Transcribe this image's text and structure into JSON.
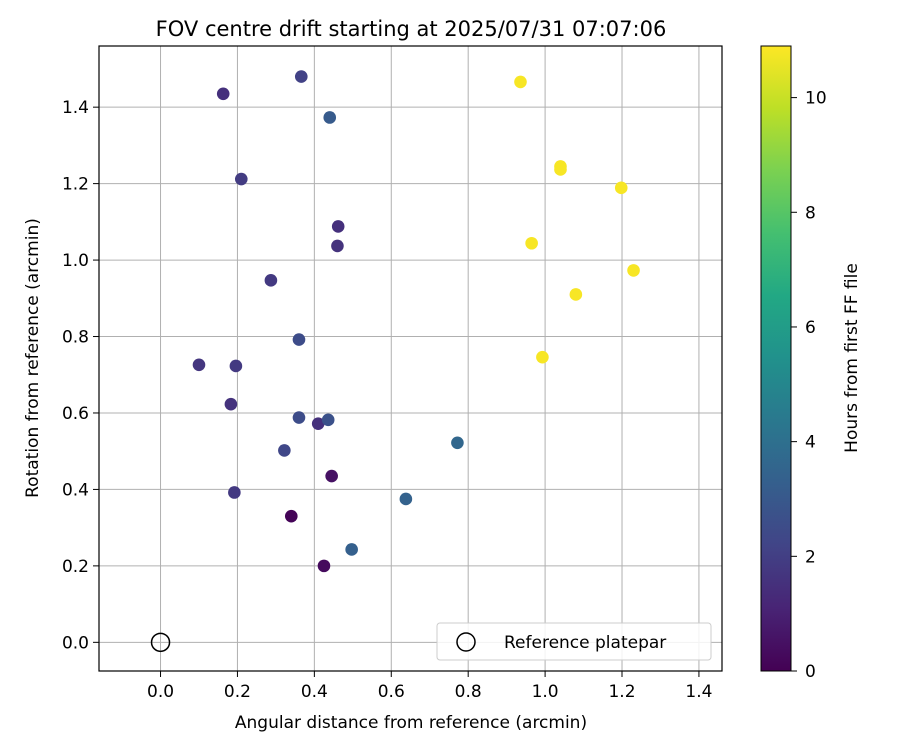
{
  "chart_data": {
    "type": "scatter",
    "title": "FOV centre drift starting at 2025/07/31 07:07:06",
    "xlabel": "Angular distance from reference (arcmin)",
    "ylabel": "Rotation from reference (arcmin)",
    "xlim": [
      -0.16,
      1.46
    ],
    "ylim": [
      -0.075,
      1.56
    ],
    "xticks": [
      0.0,
      0.2,
      0.4,
      0.6,
      0.8,
      1.0,
      1.2,
      1.4
    ],
    "yticks": [
      0.0,
      0.2,
      0.4,
      0.6,
      0.8,
      1.0,
      1.2,
      1.4
    ],
    "xtick_labels": [
      "0.0",
      "0.2",
      "0.4",
      "0.6",
      "0.8",
      "1.0",
      "1.2",
      "1.4"
    ],
    "ytick_labels": [
      "0.0",
      "0.2",
      "0.4",
      "0.6",
      "0.8",
      "1.0",
      "1.2",
      "1.4"
    ],
    "grid": true,
    "legend_position": "lower-right",
    "legend_label": "Reference platepar",
    "reference_point": {
      "x": 0.0,
      "y": 0.0
    },
    "colorbar": {
      "label": "Hours from first FF file",
      "range": [
        0,
        10.9
      ],
      "ticks": [
        0,
        2,
        4,
        6,
        8,
        10
      ],
      "tick_labels": [
        "0",
        "2",
        "4",
        "6",
        "8",
        "10"
      ],
      "colormap": "viridis"
    },
    "points": [
      {
        "x": 0.34,
        "y": 0.33,
        "c": 0.1
      },
      {
        "x": 0.425,
        "y": 0.2,
        "c": 0.3
      },
      {
        "x": 0.445,
        "y": 0.435,
        "c": 0.5
      },
      {
        "x": 0.163,
        "y": 1.435,
        "c": 1.5
      },
      {
        "x": 0.41,
        "y": 0.572,
        "c": 1.5
      },
      {
        "x": 0.462,
        "y": 1.088,
        "c": 1.5
      },
      {
        "x": 0.183,
        "y": 0.623,
        "c": 1.6
      },
      {
        "x": 0.1,
        "y": 0.726,
        "c": 1.7
      },
      {
        "x": 0.196,
        "y": 0.723,
        "c": 1.8
      },
      {
        "x": 0.192,
        "y": 0.392,
        "c": 1.8
      },
      {
        "x": 0.46,
        "y": 1.037,
        "c": 1.6
      },
      {
        "x": 0.287,
        "y": 0.947,
        "c": 1.8
      },
      {
        "x": 0.21,
        "y": 1.212,
        "c": 1.9
      },
      {
        "x": 0.366,
        "y": 1.48,
        "c": 2.1
      },
      {
        "x": 0.322,
        "y": 0.502,
        "c": 2.3
      },
      {
        "x": 0.36,
        "y": 0.588,
        "c": 2.5
      },
      {
        "x": 0.36,
        "y": 0.792,
        "c": 2.5
      },
      {
        "x": 0.436,
        "y": 0.582,
        "c": 2.7
      },
      {
        "x": 0.44,
        "y": 1.373,
        "c": 3.1
      },
      {
        "x": 0.497,
        "y": 0.243,
        "c": 3.3
      },
      {
        "x": 0.638,
        "y": 0.375,
        "c": 3.4
      },
      {
        "x": 0.772,
        "y": 0.522,
        "c": 3.6
      },
      {
        "x": 0.936,
        "y": 1.466,
        "c": 10.8
      },
      {
        "x": 1.04,
        "y": 1.245,
        "c": 10.8
      },
      {
        "x": 1.04,
        "y": 1.237,
        "c": 10.8
      },
      {
        "x": 1.198,
        "y": 1.189,
        "c": 10.8
      },
      {
        "x": 0.965,
        "y": 1.044,
        "c": 10.8
      },
      {
        "x": 1.23,
        "y": 0.973,
        "c": 10.8
      },
      {
        "x": 1.08,
        "y": 0.91,
        "c": 10.8
      },
      {
        "x": 0.993,
        "y": 0.746,
        "c": 10.8
      }
    ]
  }
}
